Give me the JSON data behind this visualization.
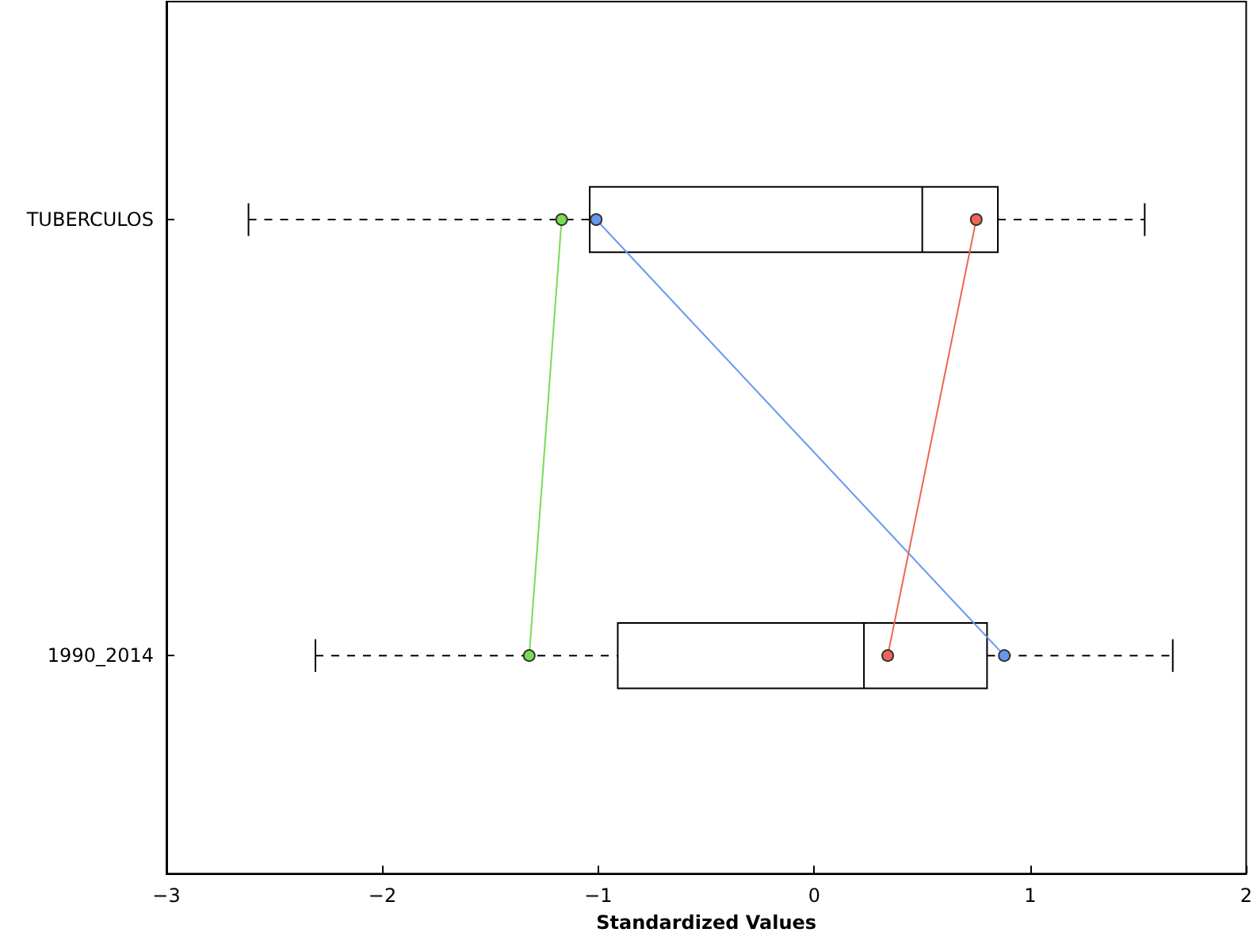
{
  "chart_data": {
    "type": "box",
    "orientation": "horizontal",
    "xlabel": "Standardized Values",
    "categories": [
      "TUBERCULOS",
      "1990_2014"
    ],
    "boxes": [
      {
        "low": -2.62,
        "q1": -1.04,
        "median": 0.5,
        "q3": 0.85,
        "high": 1.53
      },
      {
        "low": -2.31,
        "q1": -0.91,
        "median": 0.23,
        "q3": 0.8,
        "high": 1.66
      }
    ],
    "xlim": [
      -3,
      2
    ],
    "xticks": [
      {
        "value": -3,
        "label": "−3"
      },
      {
        "value": -2,
        "label": "−2"
      },
      {
        "value": -1,
        "label": "−1"
      },
      0,
      1,
      2
    ],
    "marker": "circle",
    "series": [
      {
        "type": "line",
        "color": "#77dd55",
        "values": [
          -1.17,
          -1.32
        ]
      },
      {
        "type": "line",
        "color": "#6699ee",
        "values": [
          -1.01,
          0.88
        ]
      },
      {
        "type": "line",
        "color": "#ee6655",
        "values": [
          0.75,
          0.34
        ]
      }
    ]
  }
}
